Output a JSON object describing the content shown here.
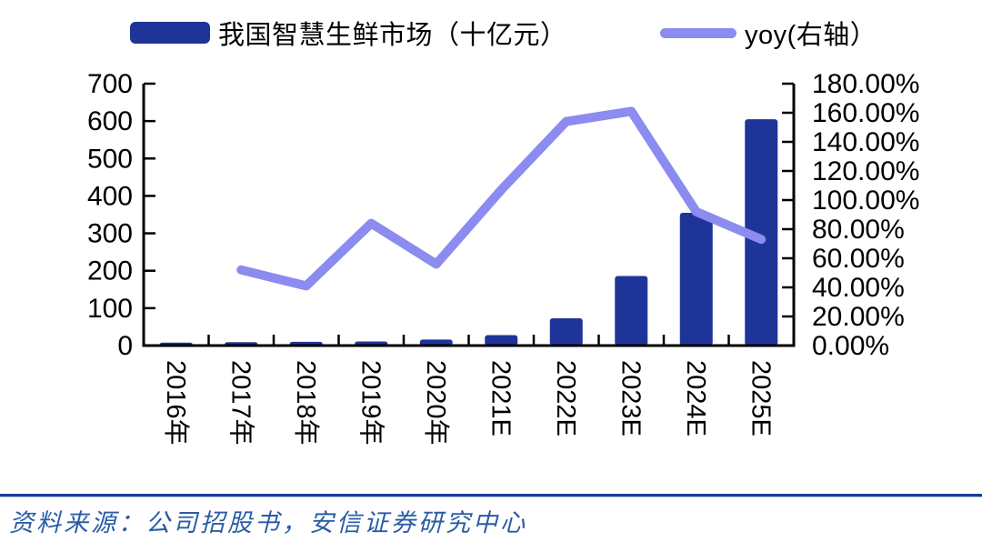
{
  "legend": {
    "bar_label": "我国智慧生鲜市场（十亿元）",
    "line_label": "yoy(右轴）"
  },
  "source": {
    "text": "资料来源：公司招股书，安信证券研究中心"
  },
  "colors": {
    "bar": "#1F3499",
    "line": "#8B8BF0",
    "axis": "#000000",
    "label_text": "#000000",
    "source_rule": "#1A3A9E",
    "source_rule_glow": "#AFC6EC",
    "source_text": "#2B5CA5"
  },
  "chart_data": {
    "type": "combo-bar-line",
    "title": "",
    "xlabel": "",
    "ylabel_left": "十亿元",
    "ylabel_right": "yoy %",
    "legend_position": "top",
    "grid": false,
    "categories": [
      "2016年",
      "2017年",
      "2018年",
      "2019年",
      "2020年",
      "2021E",
      "2022E",
      "2023E",
      "2024E",
      "2025E"
    ],
    "series": [
      {
        "name": "我国智慧生鲜市场（十亿元）",
        "type": "bar",
        "axis": "left",
        "values": [
          8,
          9,
          10,
          11,
          16,
          28,
          73,
          186,
          355,
          605
        ]
      },
      {
        "name": "yoy(右轴）",
        "type": "line",
        "axis": "right",
        "unit": "%",
        "values": [
          null,
          52,
          41,
          84,
          56,
          107,
          154,
          161,
          92,
          73
        ]
      }
    ],
    "left_axis": {
      "min": 0,
      "max": 700,
      "step": 100,
      "tick_labels": [
        "0",
        "100",
        "200",
        "300",
        "400",
        "500",
        "600",
        "700"
      ]
    },
    "right_axis": {
      "min": 0,
      "max": 180,
      "step": 20,
      "tick_labels": [
        "0.00%",
        "20.00%",
        "40.00%",
        "60.00%",
        "80.00%",
        "100.00%",
        "120.00%",
        "140.00%",
        "160.00%",
        "180.00%"
      ]
    }
  }
}
